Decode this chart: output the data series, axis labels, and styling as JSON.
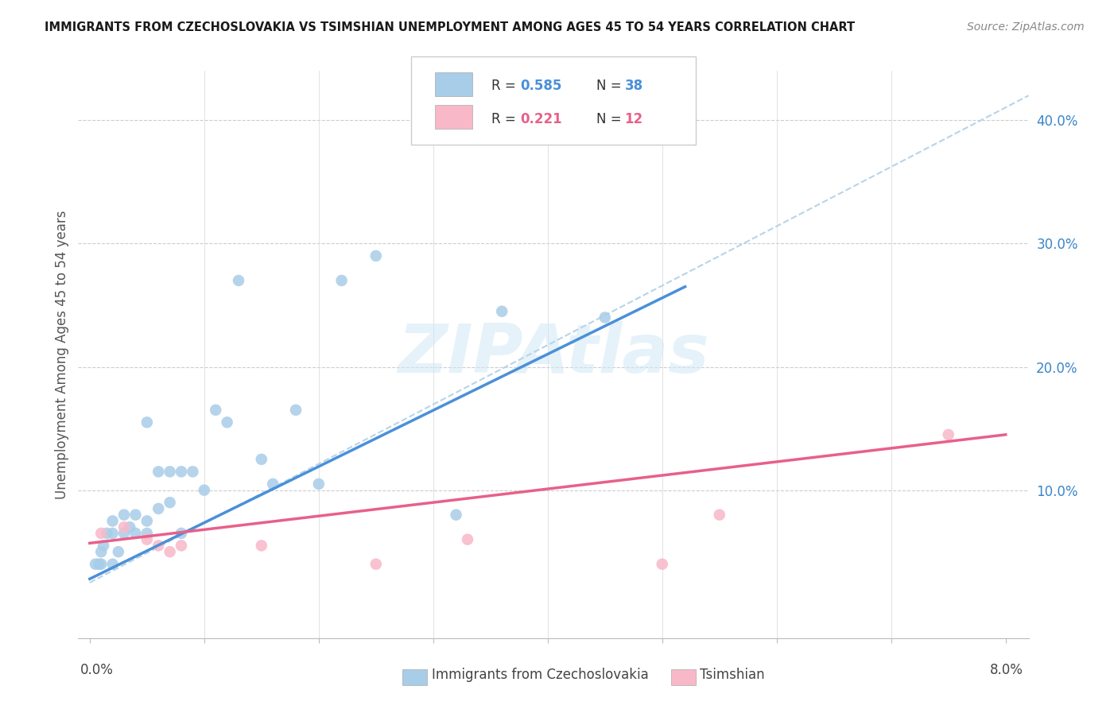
{
  "title": "IMMIGRANTS FROM CZECHOSLOVAKIA VS TSIMSHIAN UNEMPLOYMENT AMONG AGES 45 TO 54 YEARS CORRELATION CHART",
  "source": "Source: ZipAtlas.com",
  "ylabel": "Unemployment Among Ages 45 to 54 years",
  "blue_R": 0.585,
  "blue_N": 38,
  "pink_R": 0.221,
  "pink_N": 12,
  "blue_color": "#a8cde8",
  "pink_color": "#f9b8c8",
  "blue_line_color": "#4a90d9",
  "pink_line_color": "#e8608a",
  "dashed_line_color": "#b8d4e8",
  "watermark": "ZIPAtlas",
  "blue_scatter_x": [
    0.0005,
    0.0008,
    0.001,
    0.001,
    0.0012,
    0.0015,
    0.002,
    0.002,
    0.002,
    0.0025,
    0.003,
    0.003,
    0.0035,
    0.004,
    0.004,
    0.005,
    0.005,
    0.005,
    0.006,
    0.006,
    0.007,
    0.007,
    0.008,
    0.008,
    0.009,
    0.01,
    0.011,
    0.012,
    0.013,
    0.015,
    0.016,
    0.018,
    0.02,
    0.022,
    0.025,
    0.032,
    0.036,
    0.045
  ],
  "blue_scatter_y": [
    0.04,
    0.04,
    0.04,
    0.05,
    0.055,
    0.065,
    0.04,
    0.065,
    0.075,
    0.05,
    0.065,
    0.08,
    0.07,
    0.065,
    0.08,
    0.065,
    0.075,
    0.155,
    0.085,
    0.115,
    0.09,
    0.115,
    0.065,
    0.115,
    0.115,
    0.1,
    0.165,
    0.155,
    0.27,
    0.125,
    0.105,
    0.165,
    0.105,
    0.27,
    0.29,
    0.08,
    0.245,
    0.24
  ],
  "pink_scatter_x": [
    0.001,
    0.003,
    0.005,
    0.006,
    0.007,
    0.008,
    0.015,
    0.025,
    0.033,
    0.05,
    0.055,
    0.075
  ],
  "pink_scatter_y": [
    0.065,
    0.07,
    0.06,
    0.055,
    0.05,
    0.055,
    0.055,
    0.04,
    0.06,
    0.04,
    0.08,
    0.145
  ],
  "blue_trend_x": [
    0.0,
    0.052
  ],
  "blue_trend_y": [
    0.028,
    0.265
  ],
  "pink_trend_x": [
    0.0,
    0.08
  ],
  "pink_trend_y": [
    0.057,
    0.145
  ],
  "dashed_trend_x": [
    0.0,
    0.082
  ],
  "dashed_trend_y": [
    0.025,
    0.42
  ],
  "xlim": [
    -0.001,
    0.082
  ],
  "ylim": [
    -0.02,
    0.44
  ],
  "x_tick_positions": [
    0.0,
    0.01,
    0.02,
    0.03,
    0.04,
    0.05,
    0.06,
    0.07,
    0.08
  ],
  "y_tick_positions": [
    0.0,
    0.1,
    0.2,
    0.3,
    0.4
  ],
  "y_tick_labels": [
    "",
    "10.0%",
    "20.0%",
    "30.0%",
    "40.0%"
  ],
  "figsize": [
    14.06,
    8.92
  ],
  "dpi": 100
}
